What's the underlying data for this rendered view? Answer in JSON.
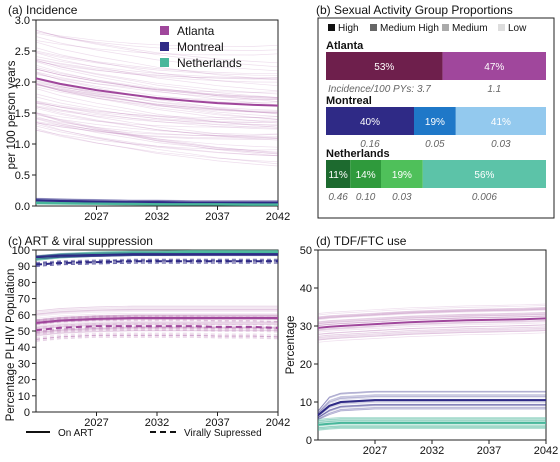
{
  "colors": {
    "atlanta": "#a0479c",
    "montreal": "#2f2a86",
    "netherlands": "#48b79b",
    "axis": "#222222"
  },
  "panels": {
    "a_title": "(a) Incidence",
    "b_title": "(b) Sexual Activity Group Proportions",
    "c_title": "(c) ART & viral suppression",
    "d_title": "(d) TDF/FTC use"
  },
  "legend_a": [
    "Atlanta",
    "Montreal",
    "Netherlands"
  ],
  "legend_b": [
    "High",
    "Medium High",
    "Medium",
    "Low"
  ],
  "legend_c": {
    "solid": "On ART",
    "dashed": "Virally Supressed"
  },
  "ylabels": {
    "a": "per 100 person years",
    "c": "Percentage PLHIV Population",
    "d": "Percentage"
  },
  "chart_data": [
    {
      "type": "line",
      "title": "(a) Incidence",
      "ylabel": "per 100 person years",
      "xlim": [
        2022,
        2042
      ],
      "ylim": [
        0,
        3
      ],
      "x_ticks": [
        "2027",
        "2032",
        "2037",
        "2042"
      ],
      "y_ticks": [
        "0.0",
        "0.5",
        "1.0",
        "1.5",
        "2.0",
        "2.5",
        "3.0"
      ],
      "x": [
        2022,
        2024,
        2027,
        2030,
        2032,
        2035,
        2037,
        2040,
        2042
      ],
      "series": [
        {
          "name": "Atlanta",
          "values": [
            2.06,
            1.97,
            1.87,
            1.79,
            1.74,
            1.69,
            1.66,
            1.63,
            1.62
          ]
        },
        {
          "name": "Montreal",
          "values": [
            0.09,
            0.08,
            0.07,
            0.06,
            0.06,
            0.05,
            0.05,
            0.05,
            0.05
          ]
        },
        {
          "name": "Netherlands",
          "values": [
            0.05,
            0.045,
            0.04,
            0.035,
            0.03,
            0.03,
            0.03,
            0.025,
            0.025
          ]
        }
      ]
    },
    {
      "type": "bar",
      "title": "(b) Sexual Activity Group Proportions",
      "legend": [
        "High",
        "Medium High",
        "Medium",
        "Low"
      ],
      "rows": [
        {
          "name": "Atlanta",
          "segments": [
            53,
            47
          ],
          "labels": [
            "53%",
            "47%"
          ],
          "incidence": [
            "Incidence/100 PYs: 3.7",
            "1.1"
          ]
        },
        {
          "name": "Montreal",
          "segments": [
            40,
            19,
            41
          ],
          "labels": [
            "40%",
            "19%",
            "41%"
          ],
          "incidence": [
            "0.16",
            "0.05",
            "0.03"
          ]
        },
        {
          "name": "Netherlands",
          "segments": [
            11,
            14,
            19,
            56
          ],
          "labels": [
            "11%",
            "14%",
            "19%",
            "56%"
          ],
          "incidence": [
            "0.46",
            "0.10",
            "0.03",
            "0.006"
          ]
        }
      ]
    },
    {
      "type": "line",
      "title": "(c) ART & viral suppression",
      "ylabel": "Percentage PLHIV Population",
      "xlim": [
        2022,
        2042
      ],
      "ylim": [
        0,
        100
      ],
      "x_ticks": [
        "2027",
        "2032",
        "2037",
        "2042"
      ],
      "y_ticks": [
        "0",
        "10",
        "20",
        "30",
        "40",
        "50",
        "60",
        "70",
        "80",
        "90",
        "100"
      ],
      "x": [
        2022,
        2024,
        2027,
        2030,
        2032,
        2035,
        2037,
        2040,
        2042
      ],
      "series": [
        {
          "name": "Atlanta On ART",
          "values": [
            55,
            56.5,
            57.5,
            58,
            58,
            58,
            58,
            58,
            58
          ]
        },
        {
          "name": "Atlanta Virally Supressed",
          "values": [
            50.5,
            52,
            53,
            53,
            53,
            53,
            52.5,
            52.5,
            52
          ]
        },
        {
          "name": "Montreal On ART",
          "values": [
            95.5,
            96.5,
            97,
            97.5,
            97.5,
            97.5,
            97.5,
            97.5,
            97.5
          ]
        },
        {
          "name": "Montreal Virally Supressed",
          "values": [
            91,
            92,
            92.5,
            93,
            93,
            93,
            93,
            93,
            93
          ]
        },
        {
          "name": "Netherlands On ART",
          "values": [
            95,
            96.5,
            97.5,
            98,
            98,
            98.5,
            98.5,
            98.5,
            98.5
          ]
        }
      ]
    },
    {
      "type": "line",
      "title": "(d) TDF/FTC use",
      "ylabel": "Percentage",
      "xlim": [
        2022,
        2042
      ],
      "ylim": [
        0,
        50
      ],
      "x_ticks": [
        "2027",
        "2032",
        "2037",
        "2042"
      ],
      "y_ticks": [
        "0",
        "10",
        "20",
        "30",
        "40",
        "50"
      ],
      "x": [
        2022,
        2023,
        2024,
        2027,
        2030,
        2032,
        2035,
        2037,
        2040,
        2042
      ],
      "series": [
        {
          "name": "Atlanta",
          "values": [
            29.5,
            29.8,
            30,
            30.5,
            31,
            31.2,
            31.5,
            31.6,
            31.8,
            32
          ]
        },
        {
          "name": "Montreal",
          "values": [
            6.5,
            9,
            10,
            10.5,
            10.5,
            10.5,
            10.5,
            10.5,
            10.5,
            10.5
          ]
        },
        {
          "name": "Netherlands",
          "values": [
            4,
            4.3,
            4.5,
            4.5,
            4.5,
            4.5,
            4.5,
            4.5,
            4.5,
            4.5
          ]
        }
      ]
    }
  ]
}
